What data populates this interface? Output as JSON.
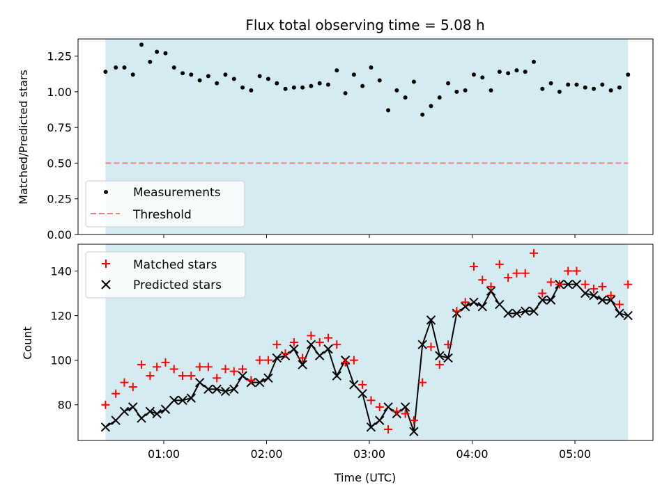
{
  "chart_data": {
    "title": "Flux total observing time = 5.08 h",
    "xlabel": "Time (UTC)",
    "x_ticks": [
      "01:00",
      "02:00",
      "03:00",
      "04:00",
      "05:00"
    ],
    "shaded_region": {
      "start": "00:26",
      "end": "05:31",
      "color": "#d4ebf1"
    },
    "panels": [
      {
        "type": "scatter",
        "ylabel": "Matched/Predicted stars",
        "ylim": [
          0.0,
          1.37
        ],
        "y_ticks": [
          "0.00",
          "0.25",
          "0.50",
          "0.75",
          "1.00",
          "1.25"
        ],
        "legend_position": "lower-left",
        "series": [
          {
            "name": "Measurements",
            "marker": "dot",
            "color": "#000000",
            "x": [
              "00:26",
              "00:32",
              "00:37",
              "00:42",
              "00:47",
              "00:52",
              "00:56",
              "01:01",
              "01:06",
              "01:11",
              "01:16",
              "01:21",
              "01:26",
              "01:31",
              "01:36",
              "01:41",
              "01:46",
              "01:51",
              "01:56",
              "02:01",
              "02:06",
              "02:11",
              "02:16",
              "02:21",
              "02:26",
              "02:31",
              "02:36",
              "02:41",
              "02:46",
              "02:51",
              "02:56",
              "03:01",
              "03:06",
              "03:11",
              "03:16",
              "03:21",
              "03:26",
              "03:31",
              "03:36",
              "03:41",
              "03:46",
              "03:51",
              "03:56",
              "04:01",
              "04:06",
              "04:11",
              "04:16",
              "04:21",
              "04:26",
              "04:31",
              "04:36",
              "04:41",
              "04:46",
              "04:51",
              "04:56",
              "05:01",
              "05:06",
              "05:11",
              "05:16",
              "05:21",
              "05:26",
              "05:31"
            ],
            "y": [
              1.14,
              1.17,
              1.17,
              1.12,
              1.33,
              1.21,
              1.28,
              1.27,
              1.17,
              1.13,
              1.12,
              1.08,
              1.11,
              1.06,
              1.12,
              1.09,
              1.03,
              1.01,
              1.11,
              1.09,
              1.06,
              1.02,
              1.03,
              1.03,
              1.04,
              1.06,
              1.05,
              1.15,
              0.99,
              1.12,
              1.04,
              1.17,
              1.08,
              0.87,
              1.01,
              0.96,
              1.07,
              0.84,
              0.9,
              0.96,
              1.06,
              1.0,
              1.01,
              1.12,
              1.1,
              1.01,
              1.14,
              1.13,
              1.15,
              1.14,
              1.21,
              1.02,
              1.06,
              1.0,
              1.05,
              1.05,
              1.03,
              1.02,
              1.05,
              1.01,
              1.03,
              1.12
            ]
          },
          {
            "name": "Threshold",
            "marker": "dashed-line",
            "color": "#f08080",
            "y_constant": 0.5
          }
        ]
      },
      {
        "type": "scatter",
        "ylabel": "Count",
        "ylim": [
          64,
          152
        ],
        "y_ticks": [
          "80",
          "100",
          "120",
          "140"
        ],
        "legend_position": "top-left",
        "series": [
          {
            "name": "Matched stars",
            "marker": "plus",
            "color": "#ff0000",
            "x": [
              "00:26",
              "00:32",
              "00:37",
              "00:42",
              "00:47",
              "00:52",
              "00:56",
              "01:01",
              "01:06",
              "01:11",
              "01:16",
              "01:21",
              "01:26",
              "01:31",
              "01:36",
              "01:41",
              "01:46",
              "01:51",
              "01:56",
              "02:01",
              "02:06",
              "02:11",
              "02:16",
              "02:21",
              "02:26",
              "02:31",
              "02:36",
              "02:41",
              "02:46",
              "02:51",
              "02:56",
              "03:01",
              "03:06",
              "03:11",
              "03:16",
              "03:21",
              "03:26",
              "03:31",
              "03:36",
              "03:41",
              "03:46",
              "03:51",
              "03:56",
              "04:01",
              "04:06",
              "04:11",
              "04:16",
              "04:21",
              "04:26",
              "04:31",
              "04:36",
              "04:41",
              "04:46",
              "04:51",
              "04:56",
              "05:01",
              "05:06",
              "05:11",
              "05:16",
              "05:21",
              "05:26",
              "05:31"
            ],
            "y": [
              80,
              85,
              90,
              88,
              98,
              93,
              97,
              99,
              96,
              93,
              93,
              97,
              97,
              92,
              96,
              95,
              96,
              91,
              100,
              100,
              107,
              103,
              108,
              101,
              111,
              108,
              110,
              107,
              99,
              100,
              89,
              82,
              79,
              69,
              77,
              76,
              73,
              90,
              106,
              98,
              107,
              122,
              126,
              142,
              136,
              133,
              143,
              137,
              139,
              139,
              148,
              130,
              135,
              134,
              140,
              140,
              134,
              132,
              133,
              129,
              125,
              134
            ]
          },
          {
            "name": "Predicted stars",
            "marker": "x",
            "color": "#000000",
            "x": [
              "00:26",
              "00:32",
              "00:37",
              "00:42",
              "00:47",
              "00:52",
              "00:56",
              "01:01",
              "01:06",
              "01:11",
              "01:16",
              "01:21",
              "01:26",
              "01:31",
              "01:36",
              "01:41",
              "01:46",
              "01:51",
              "01:56",
              "02:01",
              "02:06",
              "02:11",
              "02:16",
              "02:21",
              "02:26",
              "02:31",
              "02:36",
              "02:41",
              "02:46",
              "02:51",
              "02:56",
              "03:01",
              "03:06",
              "03:11",
              "03:16",
              "03:21",
              "03:26",
              "03:31",
              "03:36",
              "03:41",
              "03:46",
              "03:51",
              "03:56",
              "04:01",
              "04:06",
              "04:11",
              "04:16",
              "04:21",
              "04:26",
              "04:31",
              "04:36",
              "04:41",
              "04:46",
              "04:51",
              "04:56",
              "05:01",
              "05:06",
              "05:11",
              "05:16",
              "05:21",
              "05:26",
              "05:31"
            ],
            "y": [
              70,
              73,
              77,
              79,
              74,
              77,
              76,
              78,
              82,
              82,
              83,
              90,
              87,
              87,
              86,
              87,
              93,
              90,
              90,
              92,
              101,
              102,
              105,
              98,
              107,
              102,
              105,
              93,
              100,
              89,
              85,
              70,
              73,
              79,
              76,
              79,
              68,
              107,
              118,
              102,
              101,
              121,
              124,
              126,
              124,
              131,
              125,
              121,
              121,
              122,
              122,
              127,
              127,
              134,
              134,
              134,
              130,
              129,
              127,
              127,
              121,
              120
            ]
          }
        ]
      }
    ]
  }
}
